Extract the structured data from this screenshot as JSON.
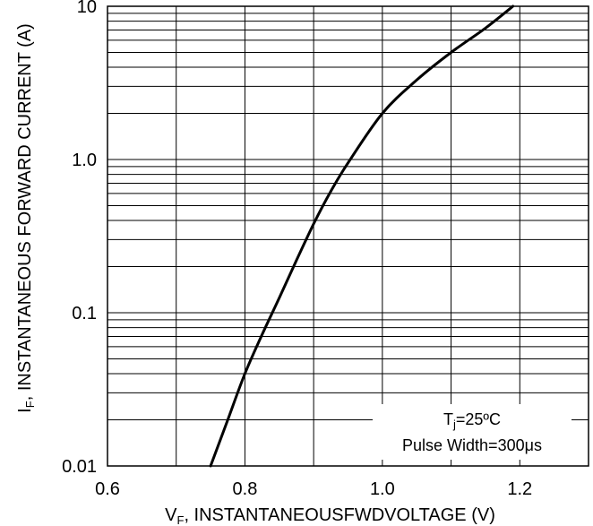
{
  "chart_data": {
    "type": "line",
    "xlabel": {
      "var": "V",
      "sub": "F",
      "rest": ", INSTANTANEOUSFWDVOLTAGE (V)"
    },
    "ylabel": {
      "var": "I",
      "sub": "F",
      "rest": ", INSTANTANEOUS FORWARD CURRENT (A)"
    },
    "x_ticks": [
      {
        "value": 0.6,
        "label": "0.6"
      },
      {
        "value": 0.8,
        "label": "0.8"
      },
      {
        "value": 1.0,
        "label": "1.0"
      },
      {
        "value": 1.2,
        "label": "1.2"
      }
    ],
    "y_ticks": [
      {
        "value": 0.01,
        "label": "0.01"
      },
      {
        "value": 0.1,
        "label": "0.1"
      },
      {
        "value": 1,
        "label": "1.0"
      },
      {
        "value": 10,
        "label": "10"
      }
    ],
    "xlim": [
      0.6,
      1.3
    ],
    "ylim": [
      0.01,
      10
    ],
    "y_scale": "log",
    "x_grid_step": 0.1,
    "y_grid": "log-minor",
    "series": [
      {
        "points": [
          {
            "x": 0.75,
            "y": 0.01
          },
          {
            "x": 0.775,
            "y": 0.02
          },
          {
            "x": 0.8,
            "y": 0.04
          },
          {
            "x": 0.825,
            "y": 0.072
          },
          {
            "x": 0.85,
            "y": 0.125
          },
          {
            "x": 0.875,
            "y": 0.22
          },
          {
            "x": 0.9,
            "y": 0.38
          },
          {
            "x": 0.925,
            "y": 0.62
          },
          {
            "x": 0.95,
            "y": 0.95
          },
          {
            "x": 1.0,
            "y": 2.0
          },
          {
            "x": 1.05,
            "y": 3.3
          },
          {
            "x": 1.1,
            "y": 5.0
          },
          {
            "x": 1.15,
            "y": 7.2
          },
          {
            "x": 1.19,
            "y": 10
          }
        ]
      }
    ],
    "annotation": {
      "line1_prefix": "T",
      "line1_sub": "j",
      "line1_suffix": "=25ºC",
      "line2": "Pulse Width=300μs"
    }
  }
}
